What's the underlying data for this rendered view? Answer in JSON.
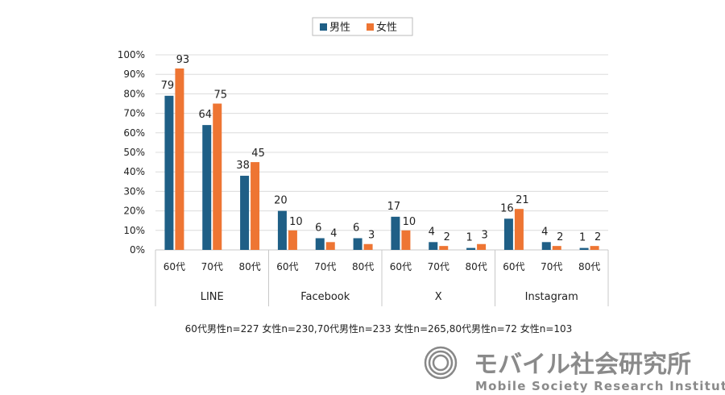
{
  "chart_data": {
    "type": "bar",
    "legend": [
      {
        "name": "男性",
        "color": "#1f5f86"
      },
      {
        "name": "女性",
        "color": "#ee7533"
      }
    ],
    "legend_position": "top-center",
    "groups": [
      "LINE",
      "Facebook",
      "X",
      "Instagram"
    ],
    "categories": [
      "60代",
      "70代",
      "80代"
    ],
    "series": [
      {
        "name": "男性",
        "values": [
          [
            79,
            64,
            38
          ],
          [
            20,
            6,
            6
          ],
          [
            17,
            4,
            1
          ],
          [
            16,
            4,
            1
          ]
        ]
      },
      {
        "name": "女性",
        "values": [
          [
            93,
            75,
            45
          ],
          [
            10,
            4,
            3
          ],
          [
            10,
            2,
            3
          ],
          [
            21,
            2,
            2
          ]
        ]
      }
    ],
    "yticks": [
      "0%",
      "10%",
      "20%",
      "30%",
      "40%",
      "50%",
      "60%",
      "70%",
      "80%",
      "90%",
      "100%"
    ],
    "ylim": [
      0,
      100
    ],
    "grid": true,
    "footnote": "60代男性n=227 女性n=230,70代男性n=233 女性n=265,80代男性n=72 女性n=103"
  },
  "logo": {
    "jp": "モバイル社会研究所",
    "en": "Mobile Society Research Institute"
  }
}
